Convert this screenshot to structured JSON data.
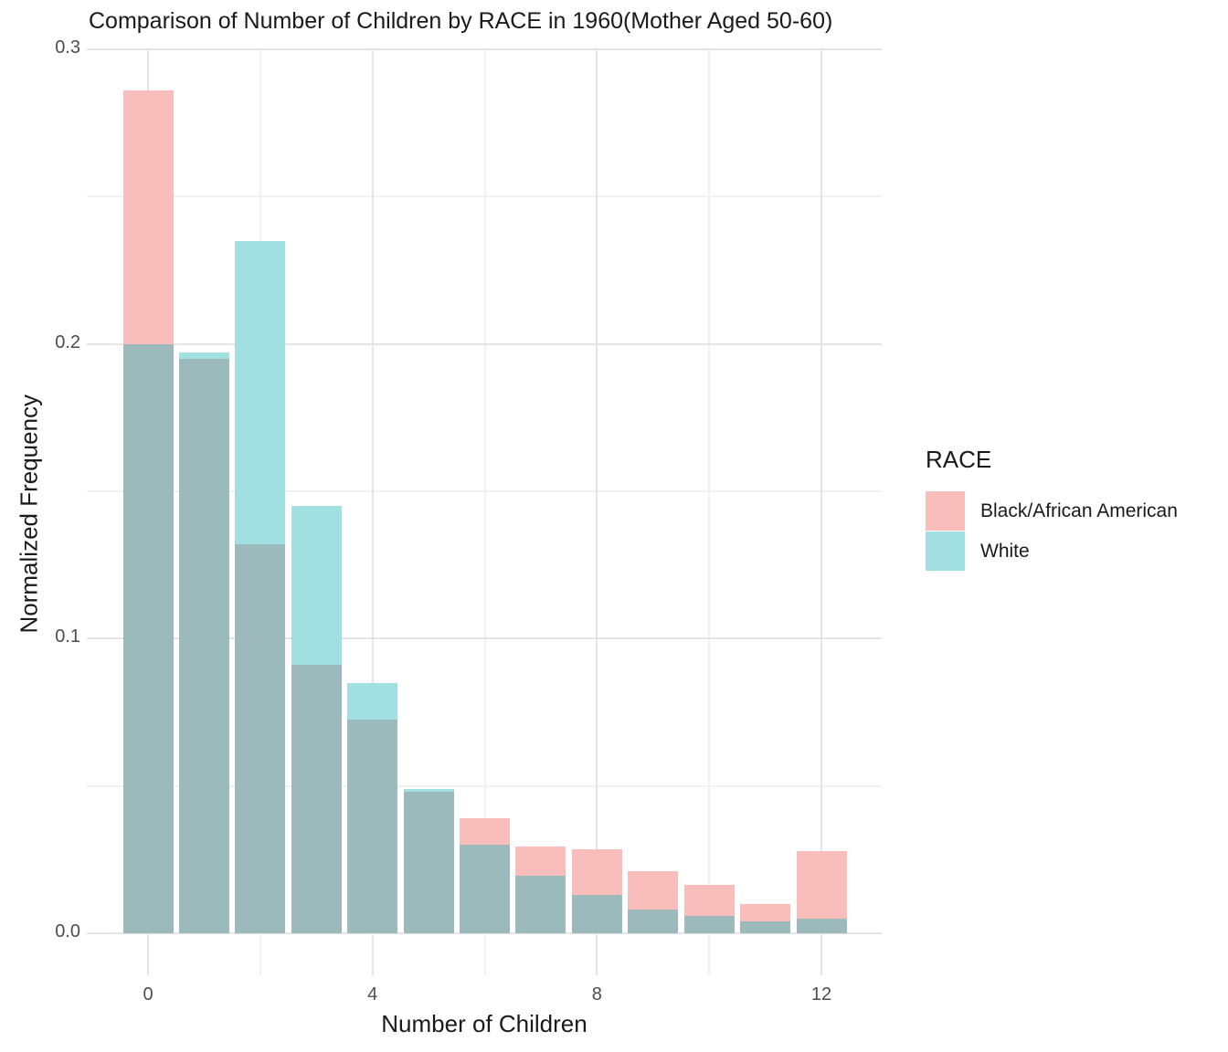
{
  "title": "Comparison of Number of Children by RACE in 1960(Mother Aged 50-60)",
  "y_axis": {
    "label": "Normalized Frequency",
    "ticks": [
      "0.0",
      "0.1",
      "0.2",
      "0.3"
    ],
    "tick_values": [
      0,
      0.1,
      0.2,
      0.3
    ]
  },
  "x_axis": {
    "label": "Number of Children",
    "ticks": [
      "0",
      "4",
      "8",
      "12"
    ],
    "tick_values": [
      0,
      4,
      8,
      12
    ]
  },
  "legend": {
    "title": "RACE",
    "items": [
      {
        "label": "Black/African American",
        "color": "#F9BDBB"
      },
      {
        "label": "White",
        "color": "#A2DFE0"
      }
    ]
  },
  "colors": {
    "black_series_fill": "#F9BDBB",
    "white_series_fill": "#A2DFE0",
    "overlap_fill": "#9CB9BB",
    "grid_major": "#E4E4E4",
    "grid_minor": "#F1F1F1",
    "tick_label": "#4d4d4d",
    "text": "#1a1a1a"
  },
  "chart_data": {
    "type": "bar",
    "subtype": "overlaid-histogram",
    "title": "Comparison of Number of Children by RACE in 1960(Mother Aged 50-60)",
    "xlabel": "Number of Children",
    "ylabel": "Normalized Frequency",
    "categories": [
      0,
      1,
      2,
      3,
      4,
      5,
      6,
      7,
      8,
      9,
      10,
      11,
      12
    ],
    "series": [
      {
        "name": "Black/African American",
        "values": [
          0.286,
          0.195,
          0.132,
          0.091,
          0.0725,
          0.048,
          0.039,
          0.0295,
          0.0285,
          0.021,
          0.0165,
          0.01,
          0.028
        ]
      },
      {
        "name": "White",
        "values": [
          0.2,
          0.197,
          0.235,
          0.145,
          0.085,
          0.049,
          0.03,
          0.0195,
          0.013,
          0.008,
          0.006,
          0.004,
          0.005
        ]
      }
    ],
    "ylim": [
      0,
      0.3
    ],
    "xlim": [
      -1.1,
      13.1
    ],
    "y_major_gridlines": [
      0,
      0.1,
      0.2,
      0.3
    ],
    "y_minor_gridlines": [
      0.05,
      0.15,
      0.25
    ],
    "x_major_gridlines": [
      0,
      4,
      8,
      12
    ],
    "x_minor_gridlines": [
      2,
      6,
      10
    ],
    "grid": true,
    "legend_position": "right",
    "bar_width": 0.9,
    "opacity_note": "series overlap rendered as blended gray-teal"
  }
}
